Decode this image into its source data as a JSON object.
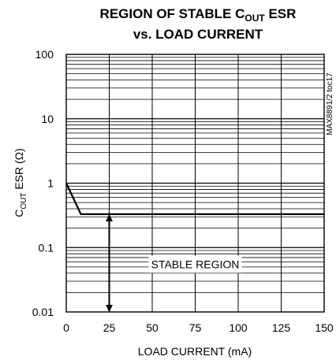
{
  "chart_data": {
    "type": "line",
    "title": {
      "line1_pre": "REGION OF STABLE C",
      "line1_sub": "OUT",
      "line1_post": " ESR",
      "line2": "vs. LOAD CURRENT"
    },
    "xlabel": "LOAD CURRENT (mA)",
    "ylabel": {
      "pre": "C",
      "sub": "OUT",
      "post": " ESR (Ω)"
    },
    "x_scale": "linear",
    "y_scale": "log",
    "xlim": [
      0,
      150
    ],
    "ylim": [
      0.01,
      100
    ],
    "x_ticks": [
      0,
      25,
      50,
      75,
      100,
      125,
      150
    ],
    "x_tick_labels": [
      "0",
      "25",
      "50",
      "75",
      "100",
      "125",
      "150"
    ],
    "y_ticks": [
      0.01,
      0.1,
      1,
      10,
      100
    ],
    "y_tick_labels": [
      "0.01",
      "0.1",
      "1",
      "10",
      "100"
    ],
    "grid": true,
    "series": [
      {
        "x": [
          0,
          8.5,
          150
        ],
        "y": [
          1,
          0.33,
          0.33
        ]
      }
    ],
    "annotations": [
      {
        "text": "STABLE REGION",
        "x": 75,
        "y": 0.055
      }
    ],
    "stable_arrow": {
      "x": 25,
      "y_top": 0.33,
      "y_bottom": 0.01
    },
    "part_number": "MAX8891/2 toc17",
    "line_color": "#000000",
    "grid_color": "#000000"
  }
}
